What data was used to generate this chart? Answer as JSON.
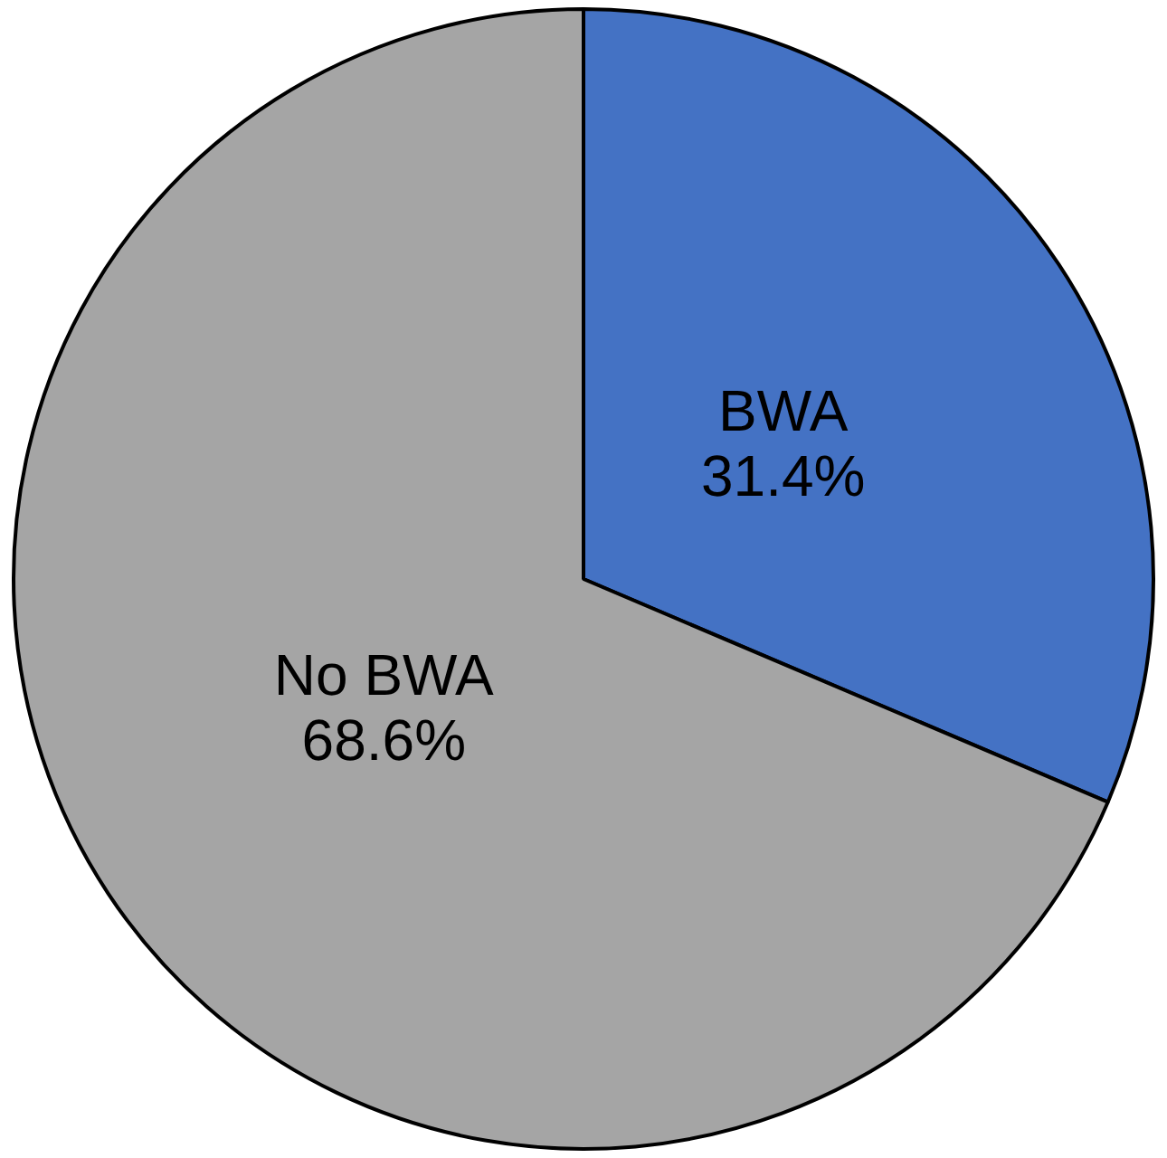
{
  "chart_data": {
    "type": "pie",
    "categories": [
      "BWA",
      "No BWA"
    ],
    "values": [
      31.4,
      68.6
    ],
    "colors": [
      "#4472c4",
      "#a5a5a5"
    ],
    "value_labels": [
      "31.4%",
      "68.6%"
    ],
    "legend": false
  }
}
